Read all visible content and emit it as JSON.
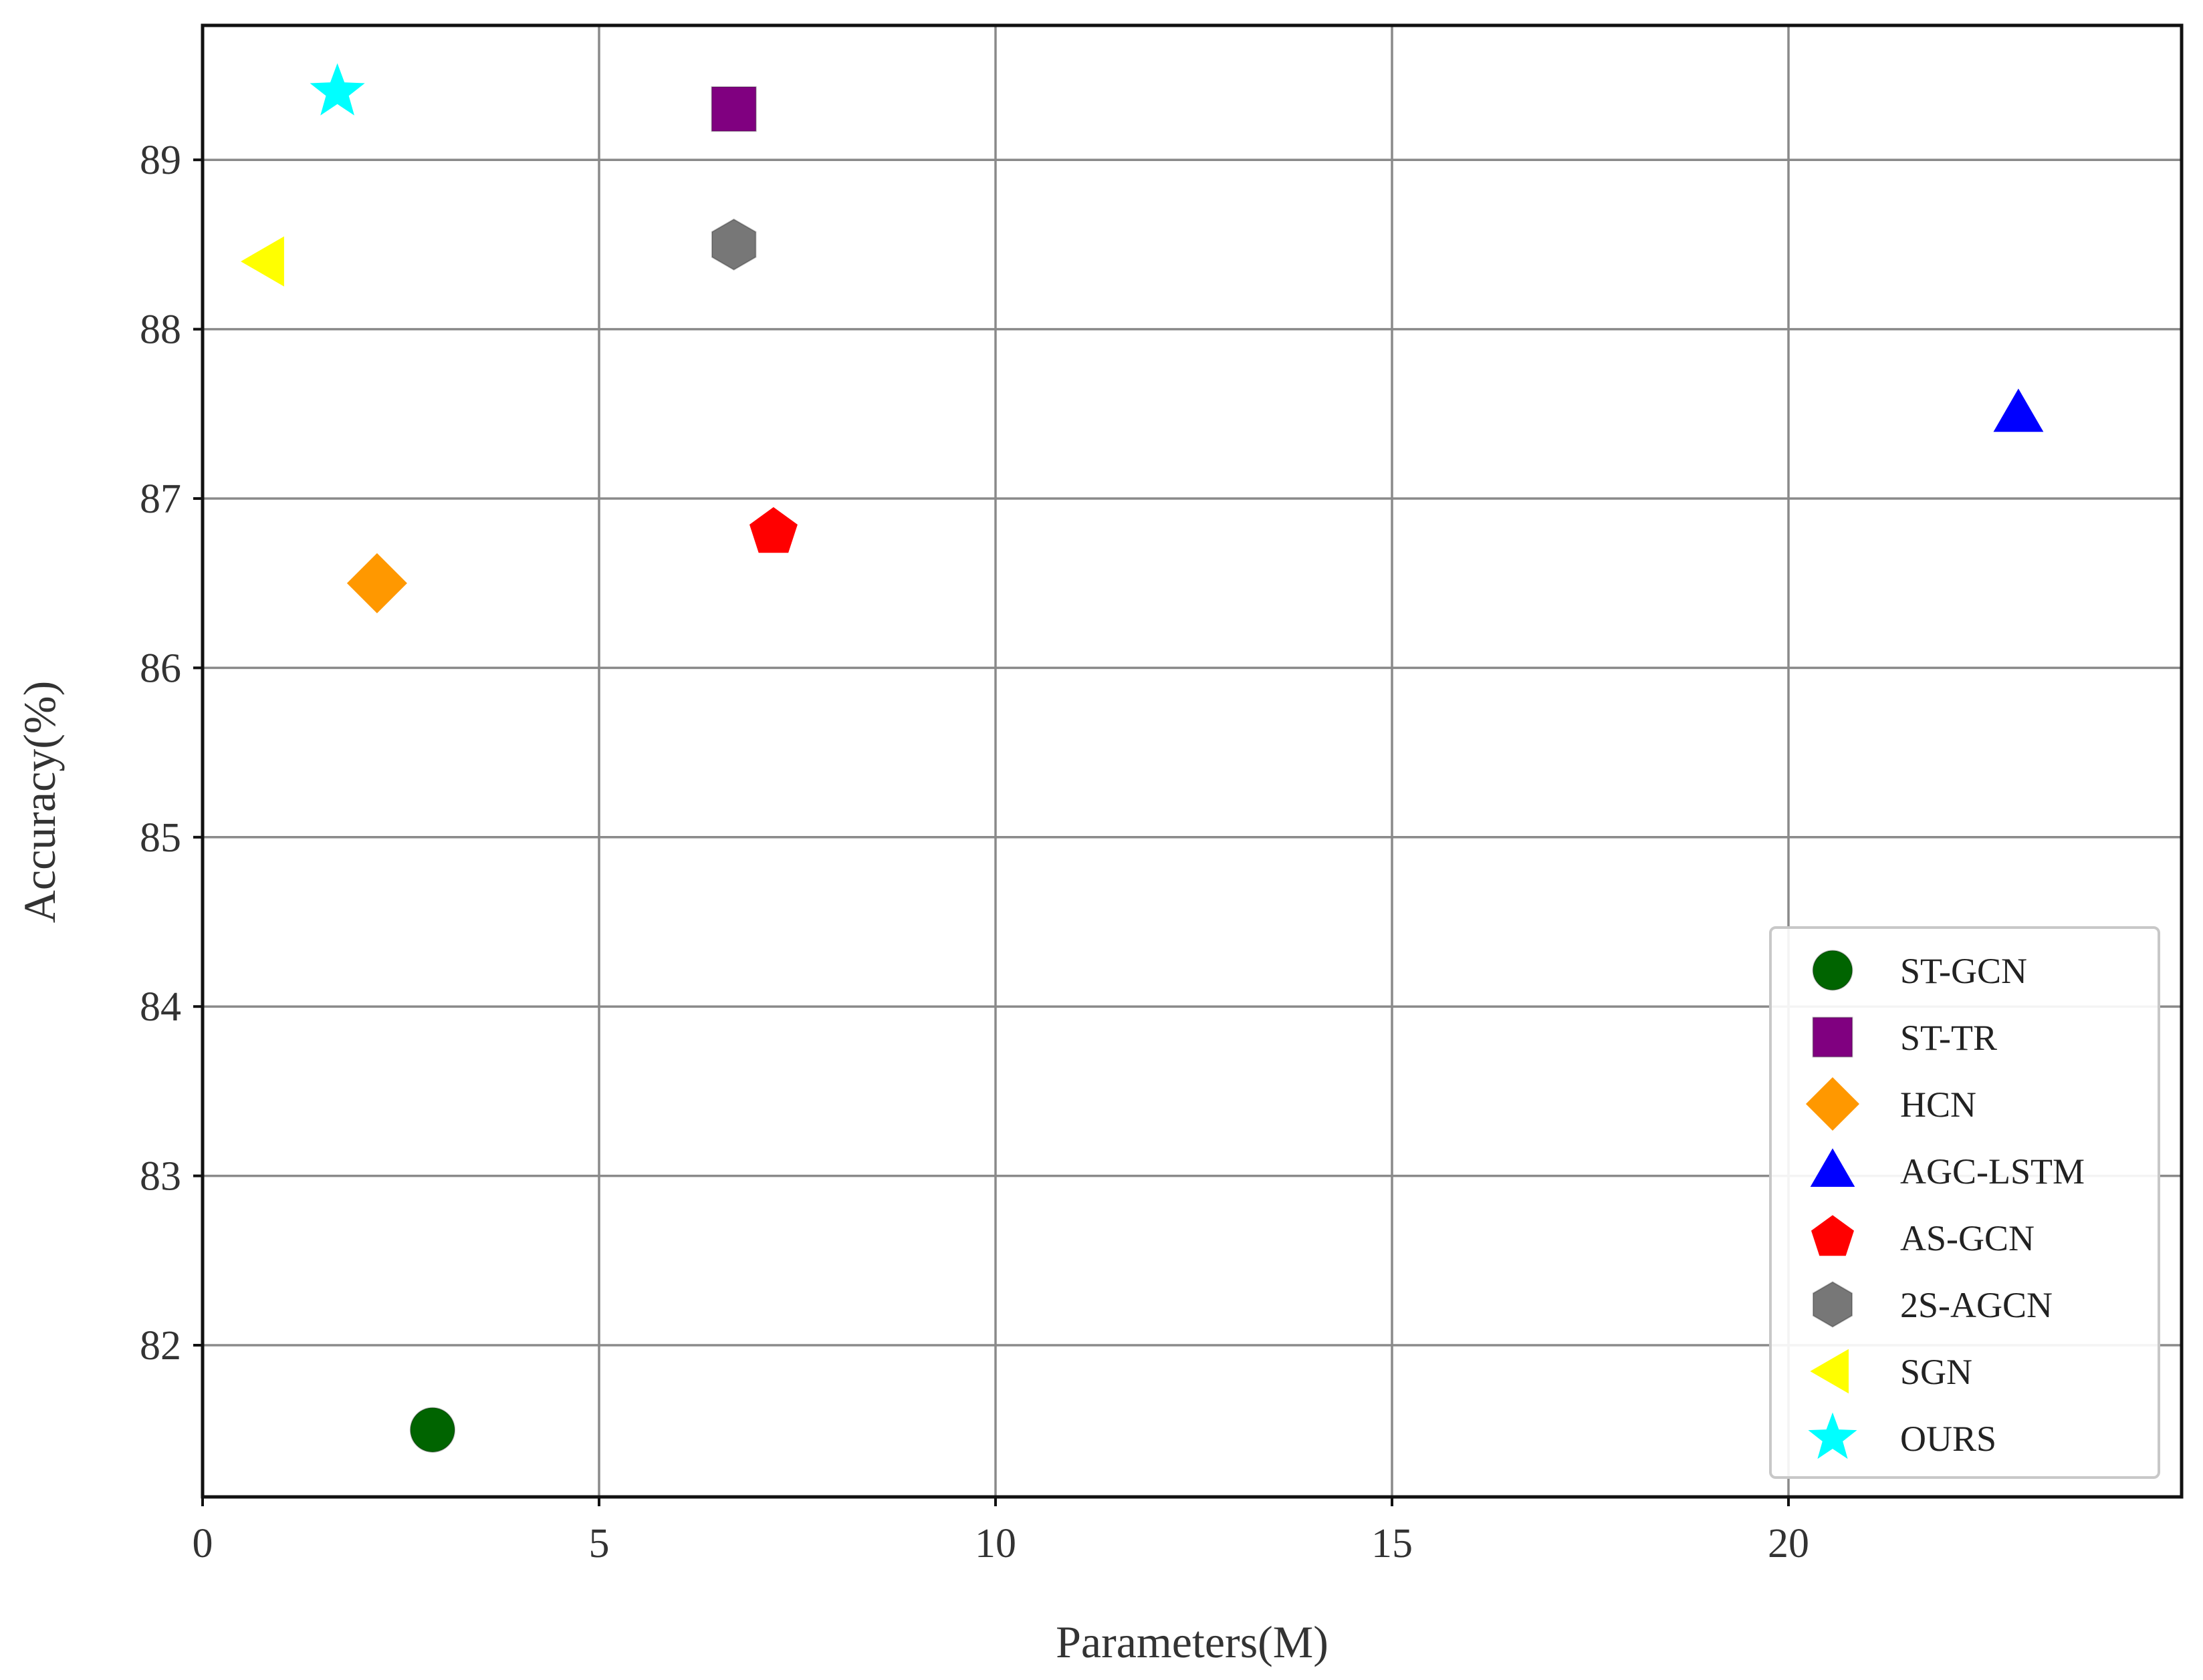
{
  "chart_data": {
    "type": "scatter",
    "xlabel": "Parameters(M)",
    "ylabel": "Accuracy(%)",
    "xlim": [
      0,
      25
    ],
    "ylim": [
      81.1,
      89.8
    ],
    "x_ticks": [
      0,
      5,
      10,
      15,
      20
    ],
    "y_ticks": [
      82,
      83,
      84,
      85,
      86,
      87,
      88,
      89
    ],
    "grid": true,
    "legend_position": "bottom-right",
    "series": [
      {
        "name": "ST-GCN",
        "marker": "circle",
        "color": "#006400",
        "x": 2.9,
        "y": 81.5
      },
      {
        "name": "ST-TR",
        "marker": "square",
        "color": "#800080",
        "x": 6.7,
        "y": 89.3
      },
      {
        "name": "HCN",
        "marker": "diamond",
        "color": "#ff9800",
        "x": 2.2,
        "y": 86.5
      },
      {
        "name": "AGC-LSTM",
        "marker": "triangle-up",
        "color": "#0000ff",
        "x": 22.9,
        "y": 87.5
      },
      {
        "name": "AS-GCN",
        "marker": "pentagon",
        "color": "#ff0000",
        "x": 7.2,
        "y": 86.8
      },
      {
        "name": "2S-AGCN",
        "marker": "hexagon",
        "color": "#777777",
        "x": 6.7,
        "y": 88.5
      },
      {
        "name": "SGN",
        "marker": "triangle-left",
        "color": "#ffff00",
        "x": 0.8,
        "y": 88.4
      },
      {
        "name": "OURS",
        "marker": "star",
        "color": "#00ffff",
        "x": 1.7,
        "y": 89.4
      }
    ]
  }
}
